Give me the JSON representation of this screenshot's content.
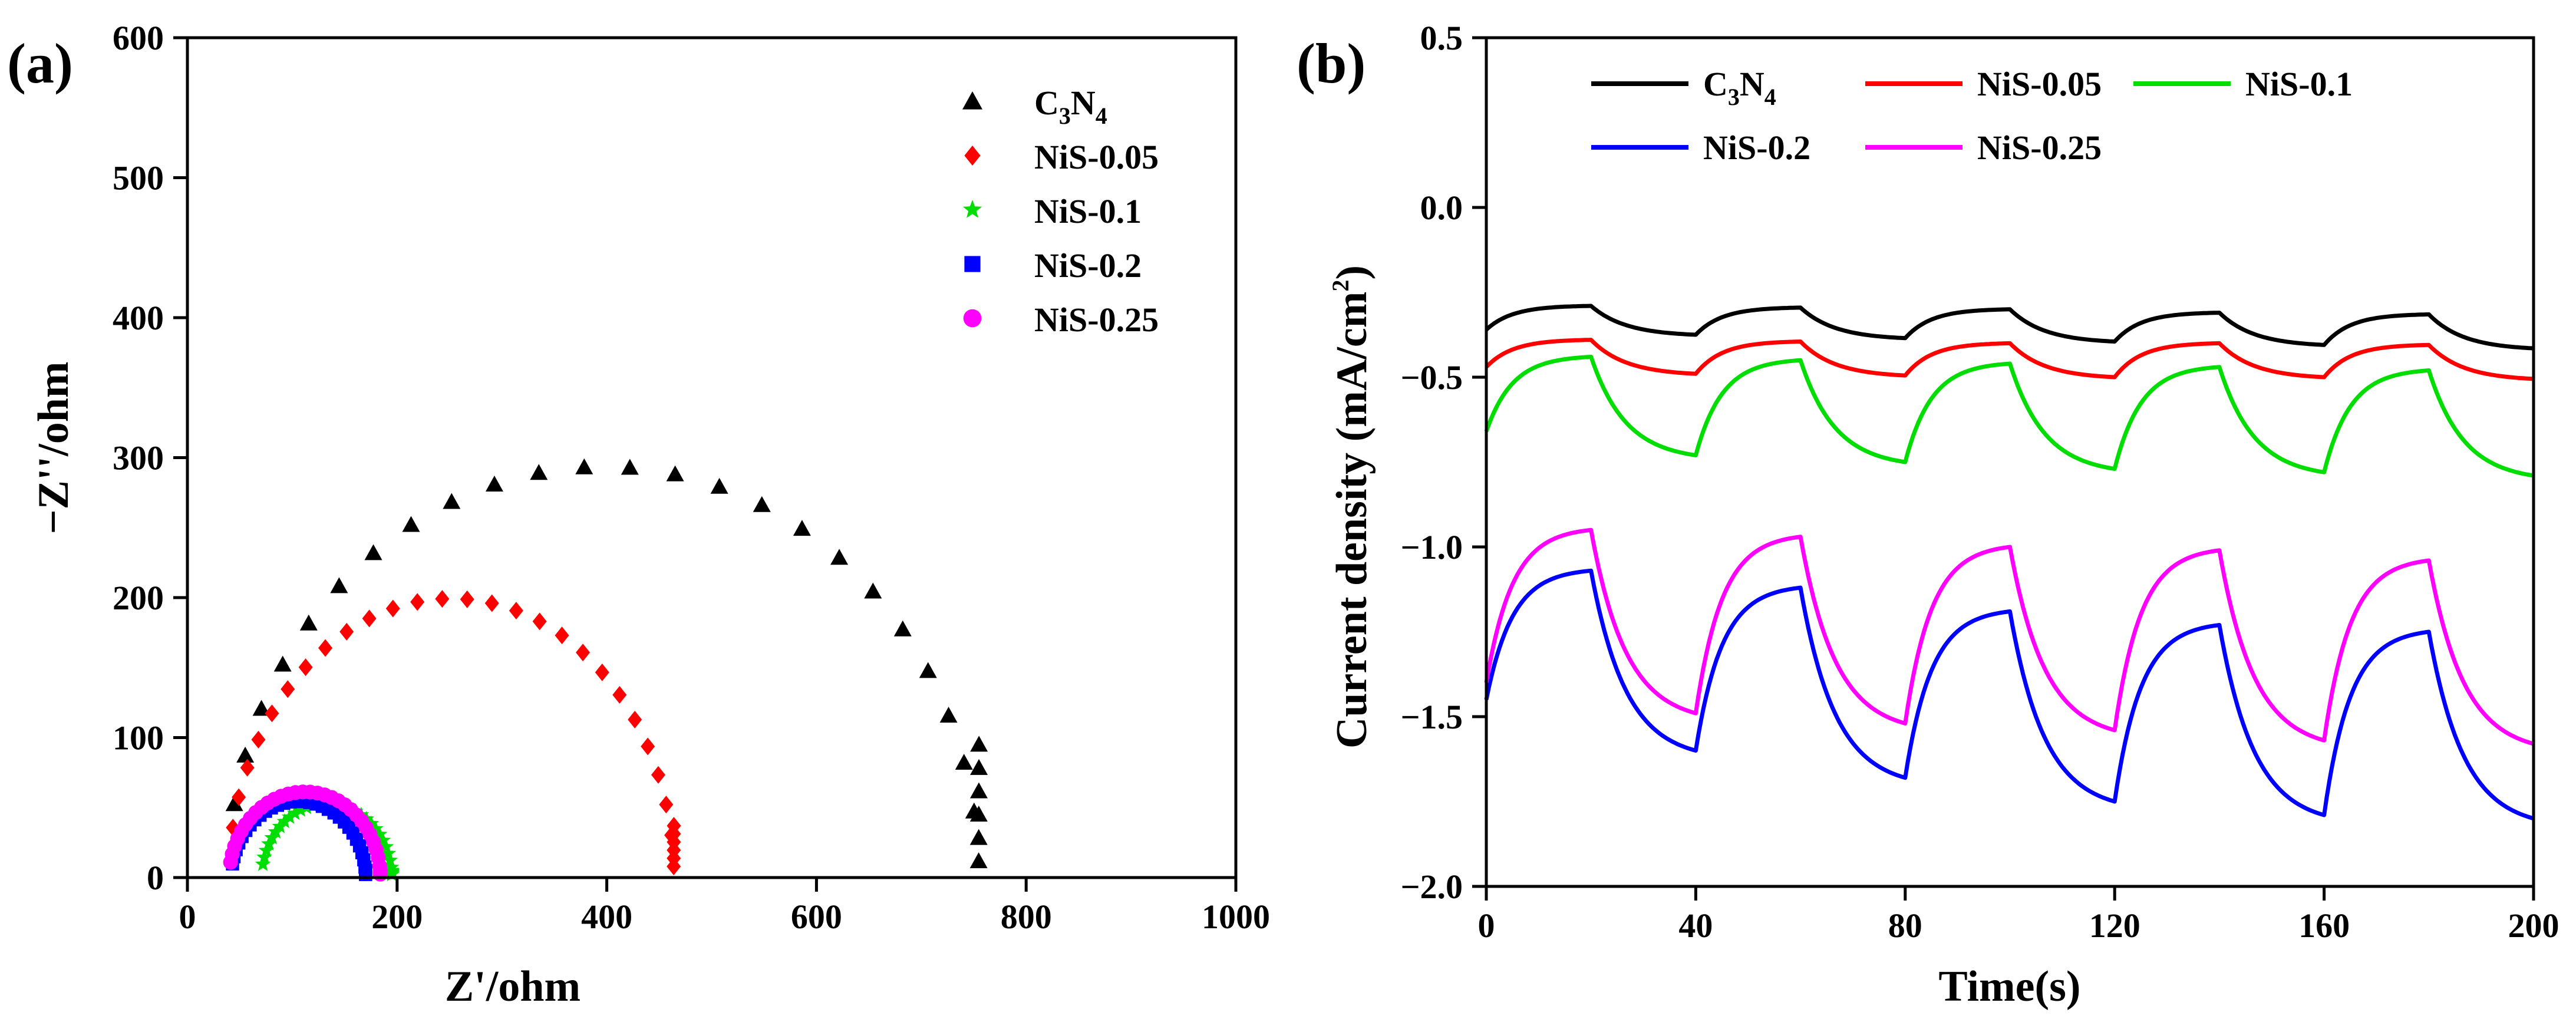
{
  "chart_data": [
    {
      "panel_label": "(a)",
      "type": "scatter",
      "xlabel": "Z'/ohm",
      "ylabel": "−Z''/ohm",
      "xlim": [
        0,
        1000
      ],
      "ylim": [
        0,
        600
      ],
      "xticks": [
        0,
        200,
        400,
        600,
        800,
        1000
      ],
      "yticks": [
        0,
        100,
        200,
        300,
        400,
        500,
        600
      ],
      "legend_position": "top-right",
      "series": [
        {
          "name": "C3N4",
          "label_main": "C",
          "label_sub1": "3",
          "label_mid": "N",
          "label_sub2": "4",
          "color": "#000000",
          "marker": "triangle",
          "center": 397,
          "radius": 358,
          "x_end": 755,
          "y_end": 95
        },
        {
          "name": "NiS-0.05",
          "label_main": "NiS-0.05",
          "color": "#ff0000",
          "marker": "diamond",
          "center": 252,
          "radius": 212,
          "x_end": 464,
          "y_end": 37
        },
        {
          "name": "NiS-0.1",
          "label_main": "NiS-0.1",
          "color": "#00dd00",
          "marker": "star",
          "center": 133,
          "radius": 62,
          "x_end": 195,
          "y_end": 5
        },
        {
          "name": "NiS-0.2",
          "label_main": "NiS-0.2",
          "color": "#0000ff",
          "marker": "square",
          "center": 106,
          "radius": 64,
          "x_end": 170,
          "y_end": 5
        },
        {
          "name": "NiS-0.25",
          "label_main": "NiS-0.25",
          "color": "#ff00ff",
          "marker": "circle",
          "center": 112,
          "radius": 72,
          "x_end": 184,
          "y_end": 5
        }
      ]
    },
    {
      "panel_label": "(b)",
      "type": "line",
      "xlabel": "Time(s)",
      "ylabel_main": "Current density (mA/cm",
      "ylabel_sup": "2",
      "ylabel_end": ")",
      "xlim": [
        0,
        200
      ],
      "ylim": [
        -2.0,
        0.5
      ],
      "xticks": [
        0,
        40,
        80,
        120,
        160,
        200
      ],
      "yticks": [
        -2.0,
        -1.5,
        -1.0,
        -0.5,
        0.0,
        0.5
      ],
      "ytick_labels": [
        "−2.0",
        "−1.5",
        "−1.0",
        "−0.5",
        "0.0",
        "0.5"
      ],
      "legend_position": "top",
      "period_s": 40,
      "on_duration_s": 20,
      "series": [
        {
          "name": "C3N4",
          "label_main": "C",
          "label_sub1": "3",
          "label_mid": "N",
          "label_sub2": "4",
          "color": "#000000",
          "start": -0.36,
          "on_peaks": [
            -0.29,
            -0.295,
            -0.3,
            -0.31,
            -0.315
          ],
          "off_lows": [
            -0.375,
            -0.385,
            -0.395,
            -0.405,
            -0.415
          ]
        },
        {
          "name": "NiS-0.05",
          "label_main": "NiS-0.05",
          "color": "#ff0000",
          "start": -0.47,
          "on_peaks": [
            -0.39,
            -0.395,
            -0.4,
            -0.4,
            -0.405
          ],
          "off_lows": [
            -0.49,
            -0.495,
            -0.5,
            -0.5,
            -0.505
          ]
        },
        {
          "name": "NiS-0.1",
          "label_main": "NiS-0.1",
          "color": "#00dd00",
          "start": -0.66,
          "on_peaks": [
            -0.44,
            -0.45,
            -0.46,
            -0.47,
            -0.48
          ],
          "off_lows": [
            -0.73,
            -0.75,
            -0.77,
            -0.78,
            -0.79
          ]
        },
        {
          "name": "NiS-0.2",
          "label_main": "NiS-0.2",
          "color": "#0000ff",
          "start": -1.45,
          "on_peaks": [
            -1.07,
            -1.12,
            -1.19,
            -1.23,
            -1.25
          ],
          "off_lows": [
            -1.6,
            -1.68,
            -1.75,
            -1.79,
            -1.8
          ]
        },
        {
          "name": "NiS-0.25",
          "label_main": "NiS-0.25",
          "color": "#ff00ff",
          "start": -1.4,
          "on_peaks": [
            -0.95,
            -0.97,
            -1.0,
            -1.01,
            -1.04
          ],
          "off_lows": [
            -1.49,
            -1.52,
            -1.54,
            -1.57,
            -1.58
          ]
        }
      ]
    }
  ]
}
